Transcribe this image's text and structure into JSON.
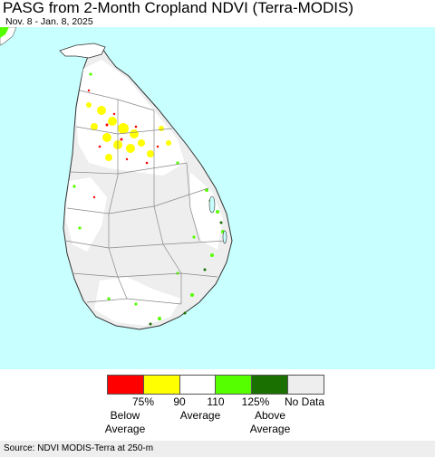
{
  "title": "PASG from 2-Month Cropland NDVI (Terra-MODIS)",
  "date_range": "Nov. 8 - Jan. 8, 2025",
  "colors": {
    "sea": "#c8ffff",
    "land": "#ffffff",
    "boundary": "#888888"
  },
  "legend": {
    "swatches": [
      {
        "name": "below-75",
        "color": "#ff0000"
      },
      {
        "name": "75-90",
        "color": "#ffff00"
      },
      {
        "name": "90-110",
        "color": "#ffffff"
      },
      {
        "name": "110-125",
        "color": "#55ff00"
      },
      {
        "name": "above-125",
        "color": "#1a7000"
      },
      {
        "name": "no-data",
        "color": "#eeeeee"
      }
    ],
    "ticks": [
      "75%",
      "90",
      "110",
      "125%",
      "No Data"
    ],
    "captions": {
      "below_line1": "Below",
      "below_line2": "Average",
      "average": "Average",
      "above_line1": "Above",
      "above_line2": "Average"
    }
  },
  "source": "Source: NDVI MODIS-Terra at 250-m"
}
